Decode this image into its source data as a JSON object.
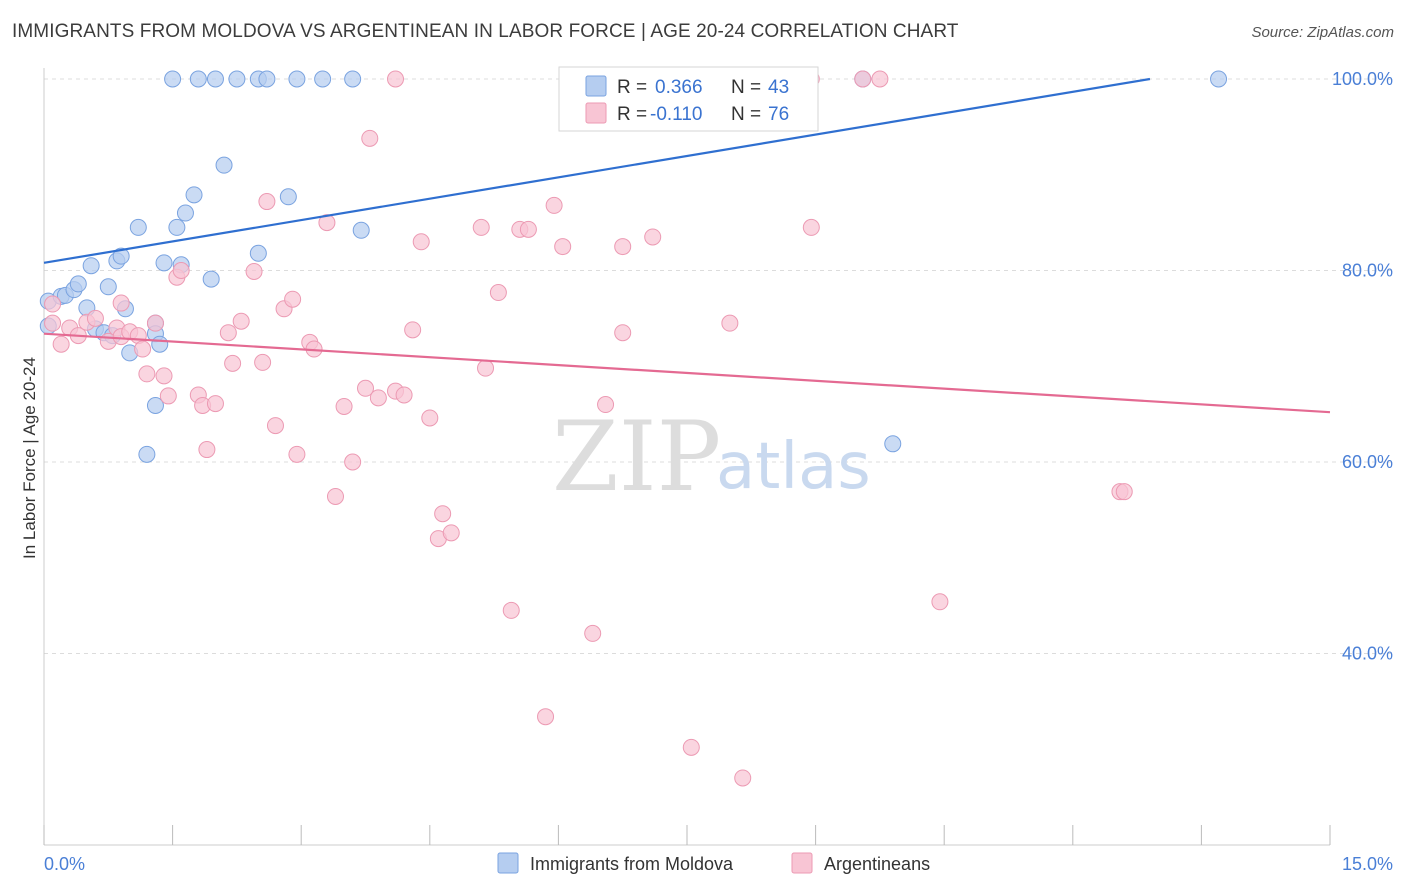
{
  "header": {
    "title": "IMMIGRANTS FROM MOLDOVA VS ARGENTINEAN IN LABOR FORCE | AGE 20-24 CORRELATION CHART",
    "source": "Source: ZipAtlas.com"
  },
  "watermark": {
    "zip": "ZIP",
    "atlas": "atlas"
  },
  "colors": {
    "blue_fill": "#b5cdf0",
    "blue_stroke": "#7aa3e0",
    "blue_line": "#2f6fd0",
    "pink_fill": "#f8c5d4",
    "pink_stroke": "#ec9ab3",
    "pink_line": "#e46a92",
    "tick_text": "#4a7fd6",
    "grid": "#dcdcdc"
  },
  "legend": {
    "rows": [
      {
        "r_label": "R =",
        "r_value": "0.366",
        "n_label": "N =",
        "n_value": "43",
        "color": "blue"
      },
      {
        "r_label": "R =",
        "r_value": "-0.110",
        "n_label": "N =",
        "n_value": "76",
        "color": "pink"
      }
    ]
  },
  "chart_data": {
    "type": "scatter",
    "title": "IMMIGRANTS FROM MOLDOVA VS ARGENTINEAN IN LABOR FORCE | AGE 20-24 CORRELATION CHART",
    "xlabel": "",
    "ylabel": "In Labor Force | Age 20-24",
    "xlim": [
      0,
      15
    ],
    "ylim": [
      20,
      100
    ],
    "x_tick_labels": [
      "0.0%",
      "15.0%"
    ],
    "y_ticks": [
      40,
      60,
      80,
      100
    ],
    "y_tick_labels": [
      "40.0%",
      "60.0%",
      "80.0%",
      "100.0%"
    ],
    "grid": true,
    "legend_position": "bottom",
    "series": [
      {
        "name": "Immigrants from Moldova",
        "color": "blue",
        "trend": {
          "x": [
            0,
            12.9
          ],
          "y": [
            80.8,
            100
          ]
        },
        "points": [
          [
            0.05,
            76.8
          ],
          [
            0.05,
            74.2
          ],
          [
            0.2,
            77.3
          ],
          [
            0.25,
            77.4
          ],
          [
            0.35,
            78.0
          ],
          [
            0.4,
            78.6
          ],
          [
            0.5,
            76.1
          ],
          [
            0.55,
            80.5
          ],
          [
            0.6,
            73.9
          ],
          [
            0.7,
            73.5
          ],
          [
            0.75,
            78.3
          ],
          [
            0.8,
            73.2
          ],
          [
            0.85,
            81.0
          ],
          [
            0.9,
            81.5
          ],
          [
            0.95,
            76.0
          ],
          [
            1.0,
            71.4
          ],
          [
            1.1,
            84.5
          ],
          [
            1.2,
            60.8
          ],
          [
            1.3,
            74.5
          ],
          [
            1.3,
            73.4
          ],
          [
            1.3,
            65.9
          ],
          [
            1.35,
            72.3
          ],
          [
            1.4,
            80.8
          ],
          [
            1.55,
            84.5
          ],
          [
            1.6,
            80.6
          ],
          [
            1.65,
            86.0
          ],
          [
            1.75,
            87.9
          ],
          [
            1.95,
            79.1
          ],
          [
            2.1,
            91.0
          ],
          [
            2.5,
            81.8
          ],
          [
            2.85,
            87.7
          ],
          [
            3.7,
            84.2
          ],
          [
            1.5,
            100
          ],
          [
            1.8,
            100
          ],
          [
            2.0,
            100
          ],
          [
            2.25,
            100
          ],
          [
            2.5,
            100
          ],
          [
            2.6,
            100
          ],
          [
            2.95,
            100
          ],
          [
            3.25,
            100
          ],
          [
            3.6,
            100
          ],
          [
            8.5,
            100
          ],
          [
            9.55,
            100
          ],
          [
            13.7,
            100
          ],
          [
            9.9,
            61.9
          ]
        ]
      },
      {
        "name": "Argentineans",
        "color": "pink",
        "trend": {
          "x": [
            0,
            15
          ],
          "y": [
            73.4,
            65.2
          ]
        },
        "points": [
          [
            0.1,
            76.5
          ],
          [
            0.1,
            74.5
          ],
          [
            0.2,
            72.3
          ],
          [
            0.3,
            74.0
          ],
          [
            0.4,
            73.2
          ],
          [
            0.5,
            74.6
          ],
          [
            0.6,
            75.0
          ],
          [
            0.75,
            72.6
          ],
          [
            0.85,
            74.0
          ],
          [
            0.9,
            73.1
          ],
          [
            0.9,
            76.6
          ],
          [
            1.0,
            73.6
          ],
          [
            1.1,
            73.2
          ],
          [
            1.15,
            71.8
          ],
          [
            1.2,
            69.2
          ],
          [
            1.3,
            74.5
          ],
          [
            1.4,
            69.0
          ],
          [
            1.45,
            66.9
          ],
          [
            1.55,
            79.3
          ],
          [
            1.6,
            80.0
          ],
          [
            1.8,
            67.0
          ],
          [
            1.85,
            65.9
          ],
          [
            1.9,
            61.3
          ],
          [
            2.0,
            66.1
          ],
          [
            2.15,
            73.5
          ],
          [
            2.2,
            70.3
          ],
          [
            2.3,
            74.7
          ],
          [
            2.45,
            79.9
          ],
          [
            2.55,
            70.4
          ],
          [
            2.6,
            87.2
          ],
          [
            2.7,
            63.8
          ],
          [
            2.8,
            76.0
          ],
          [
            2.9,
            77.0
          ],
          [
            2.95,
            60.8
          ],
          [
            3.1,
            72.5
          ],
          [
            3.15,
            71.8
          ],
          [
            3.3,
            85.0
          ],
          [
            3.4,
            56.4
          ],
          [
            3.5,
            65.8
          ],
          [
            3.6,
            60.0
          ],
          [
            3.75,
            67.7
          ],
          [
            3.8,
            93.8
          ],
          [
            3.9,
            66.7
          ],
          [
            4.1,
            67.4
          ],
          [
            4.2,
            67.0
          ],
          [
            4.3,
            73.8
          ],
          [
            4.4,
            83.0
          ],
          [
            4.5,
            64.6
          ],
          [
            4.6,
            52.0
          ],
          [
            4.65,
            54.6
          ],
          [
            4.75,
            52.6
          ],
          [
            5.1,
            84.5
          ],
          [
            5.15,
            69.8
          ],
          [
            5.3,
            77.7
          ],
          [
            5.45,
            44.5
          ],
          [
            5.55,
            84.3
          ],
          [
            5.65,
            84.3
          ],
          [
            5.85,
            33.4
          ],
          [
            5.95,
            86.8
          ],
          [
            6.05,
            82.5
          ],
          [
            6.4,
            42.1
          ],
          [
            6.55,
            66.0
          ],
          [
            6.75,
            73.5
          ],
          [
            6.75,
            82.5
          ],
          [
            7.1,
            83.5
          ],
          [
            7.55,
            30.2
          ],
          [
            8.0,
            74.5
          ],
          [
            8.15,
            27.0
          ],
          [
            8.95,
            84.5
          ],
          [
            10.45,
            45.4
          ],
          [
            12.55,
            56.9
          ],
          [
            12.6,
            56.9
          ],
          [
            4.1,
            100
          ],
          [
            8.95,
            100
          ],
          [
            9.55,
            100
          ],
          [
            9.75,
            100
          ]
        ]
      }
    ]
  }
}
